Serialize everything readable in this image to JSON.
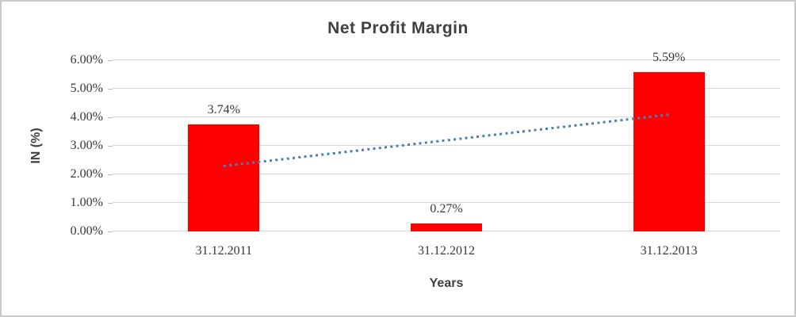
{
  "chart_data": {
    "type": "bar",
    "title": "Net Profit Margin",
    "xlabel": "Years",
    "ylabel": "IN (%)",
    "categories": [
      "31.12.2011",
      "31.12.2012",
      "31.12.2013"
    ],
    "values": [
      3.74,
      0.27,
      5.59
    ],
    "data_labels": [
      "3.74%",
      "0.27%",
      "5.59%"
    ],
    "ylim": [
      0,
      6
    ],
    "yticks": [
      0,
      1,
      2,
      3,
      4,
      5,
      6
    ],
    "ytick_labels": [
      "0.00%",
      "1.00%",
      "2.00%",
      "3.00%",
      "4.00%",
      "5.00%",
      "6.00%"
    ],
    "grid": true,
    "legend": false,
    "trendline": {
      "type": "linear",
      "style": "dotted",
      "start_percent": 2.25,
      "end_percent": 4.05
    },
    "colors": {
      "bar": "#ff0000",
      "trendline": "#4a7ebb",
      "gridline": "#d9d9d9",
      "tick_mark": "#bfbfbf",
      "title_text": "#404040",
      "label_text": "#383838",
      "frame_border": "#c9c9c9"
    }
  }
}
